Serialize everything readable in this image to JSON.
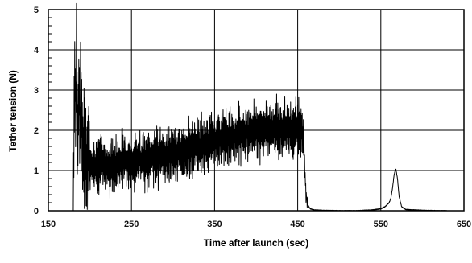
{
  "chart_data": {
    "type": "line",
    "title": "",
    "xlabel": "Time after launch (sec)",
    "ylabel": "Tether tension (N)",
    "xlim": [
      150,
      650
    ],
    "ylim": [
      0,
      5
    ],
    "xticks": [
      "150",
      "250",
      "350",
      "450",
      "550",
      "650"
    ],
    "yticks": [
      "0",
      "1",
      "2",
      "3",
      "4",
      "5"
    ],
    "grid": true,
    "legend": "none",
    "colors": {
      "line": "#000000",
      "grid": "#000000",
      "background": "#ffffff"
    },
    "series": [
      {
        "x": [
          180,
          181,
          182,
          183,
          184,
          185,
          186,
          187,
          188,
          189,
          190,
          192,
          194,
          196,
          198,
          200,
          205,
          210,
          215,
          220,
          230,
          240,
          250,
          260,
          270,
          280,
          290,
          300,
          310,
          320,
          330,
          340,
          350,
          360,
          370,
          380,
          390,
          400,
          410,
          420,
          430,
          440,
          450,
          455,
          457,
          458,
          459,
          460,
          462,
          465,
          470,
          480,
          500,
          520,
          540,
          550,
          555,
          560,
          562,
          564,
          566,
          568,
          570,
          572,
          575,
          580,
          600,
          620,
          630
        ],
        "y": [
          0.1,
          2.4,
          3.5,
          2.0,
          3.8,
          1.6,
          2.5,
          3.1,
          1.8,
          3.4,
          2.2,
          1.3,
          1.7,
          1.0,
          1.5,
          1.1,
          1.2,
          1.0,
          1.3,
          1.1,
          1.15,
          1.25,
          1.2,
          1.3,
          1.25,
          1.4,
          1.35,
          1.45,
          1.5,
          1.55,
          1.6,
          1.65,
          1.75,
          1.8,
          1.85,
          1.9,
          1.95,
          2.0,
          2.0,
          2.05,
          2.05,
          2.0,
          2.1,
          2.0,
          1.8,
          1.3,
          0.9,
          0.4,
          0.15,
          0.05,
          0.02,
          0.01,
          0.0,
          0.0,
          0.02,
          0.05,
          0.1,
          0.2,
          0.3,
          0.55,
          0.9,
          1.05,
          0.8,
          0.35,
          0.1,
          0.03,
          0.01,
          0.0,
          0.0
        ]
      }
    ]
  }
}
